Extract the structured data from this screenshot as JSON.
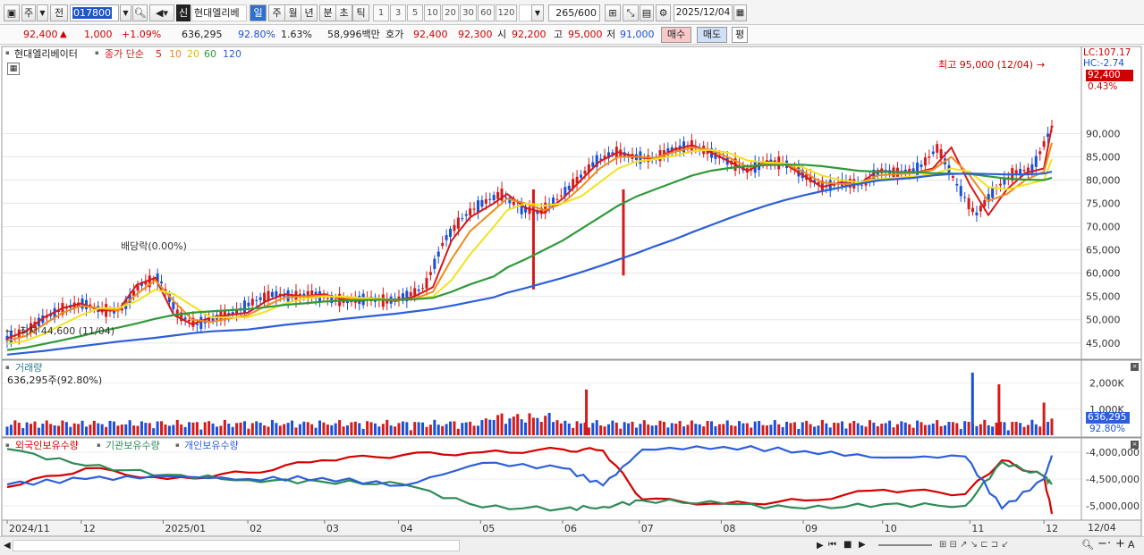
{
  "toolbar": {
    "type_label": "주",
    "prev_label": "전",
    "code": "017800",
    "sin_label": "신",
    "stock_name": "현대엘리베",
    "period_buttons": [
      "일",
      "주",
      "월",
      "년",
      "분",
      "초",
      "틱"
    ],
    "period_active": "일",
    "number_buttons": [
      "1",
      "3",
      "5",
      "10",
      "20",
      "30",
      "60",
      "120"
    ],
    "count": "265",
    "count_max": "/600",
    "date": "2025/12/04"
  },
  "quote": {
    "price": "92,400",
    "change": "1,000",
    "change_pct": "+1.09%",
    "volume": "636,295",
    "volume_ratio": "92.80%",
    "turnover": "1.63%",
    "amount": "58,996백만",
    "ask_label": "호가",
    "ask": "92,400",
    "bid": "92,300",
    "open_label": "시",
    "open": "92,200",
    "high_label": "고",
    "high": "95,000",
    "low_label": "저",
    "low": "91,000",
    "buy_label": "매수",
    "sell_label": "매도",
    "eval_label": "평"
  },
  "price_panel": {
    "legend_name": "현대엘리베이터",
    "legend_ma": "종가 단순",
    "ma_labels": [
      "5",
      "10",
      "20",
      "60",
      "120"
    ],
    "ma_colors": [
      "#d51a1a",
      "#f08a1c",
      "#f2e21d",
      "#2f9a3a",
      "#2e5fd8"
    ],
    "lc_label": "LC:107.17",
    "hc_label": "HC:-2.74",
    "current_price_tag": "92,400",
    "current_pct_tag": "0.43%",
    "high_annotation": "최고 95,000 (12/04)",
    "low_annotation": "최저 44,600 (11/04)",
    "dividend_annotation": "배당락(0.00%)"
  },
  "volume_panel": {
    "title": "거래량",
    "summary": "636,295주(92.80%)",
    "current_tag": "636,295",
    "pct_tag": "92.80%"
  },
  "holdings_panel": {
    "legend": [
      "외국인보유수량",
      "기관보유수량",
      "개인보유수량"
    ],
    "colors": [
      "#d50000",
      "#2e8b57",
      "#2e5fd8"
    ]
  },
  "x_axis": {
    "labels": [
      "2024/11",
      "12",
      "2025/01",
      "02",
      "03",
      "04",
      "05",
      "06",
      "07",
      "08",
      "09",
      "10",
      "11",
      "12"
    ],
    "right_label": "12/04"
  },
  "chart_data": [
    {
      "type": "line",
      "title": "현대엘리베이터",
      "y_ticks": [
        45000,
        50000,
        55000,
        60000,
        65000,
        70000,
        75000,
        80000,
        85000,
        90000
      ],
      "y_tick_labels": [
        "45,000",
        "50,000",
        "55,000",
        "60,000",
        "65,000",
        "70,000",
        "75,000",
        "80,000",
        "85,000",
        "90,000"
      ],
      "ylim": [
        41500,
        107170
      ],
      "x": [
        "2024-11-04",
        "2024-11-11",
        "2024-11-18",
        "2024-11-25",
        "2024-12-02",
        "2024-12-09",
        "2024-12-16",
        "2024-12-23",
        "2024-12-30",
        "2025-01-06",
        "2025-01-13",
        "2025-01-20",
        "2025-02-03",
        "2025-02-10",
        "2025-02-17",
        "2025-02-24",
        "2025-03-04",
        "2025-03-10",
        "2025-03-17",
        "2025-03-24",
        "2025-03-31",
        "2025-04-07",
        "2025-04-14",
        "2025-04-21",
        "2025-04-28",
        "2025-05-07",
        "2025-05-12",
        "2025-05-19",
        "2025-05-26",
        "2025-06-02",
        "2025-06-09",
        "2025-06-16",
        "2025-06-23",
        "2025-06-30",
        "2025-07-07",
        "2025-07-14",
        "2025-07-21",
        "2025-07-28",
        "2025-08-04",
        "2025-08-11",
        "2025-08-18",
        "2025-08-25",
        "2025-09-01",
        "2025-09-08",
        "2025-09-15",
        "2025-09-22",
        "2025-09-29",
        "2025-10-13",
        "2025-10-20",
        "2025-10-27",
        "2025-11-03",
        "2025-11-10",
        "2025-11-17",
        "2025-11-24",
        "2025-12-01",
        "2025-12-04"
      ],
      "series": [
        {
          "name": "5",
          "values": [
            46000,
            47500,
            50500,
            52500,
            53500,
            52000,
            52000,
            57500,
            59000,
            51000,
            49000,
            50500,
            51500,
            54000,
            55500,
            55000,
            55500,
            54500,
            54000,
            54500,
            54000,
            55000,
            57000,
            67000,
            72000,
            75000,
            77000,
            74000,
            73000,
            76000,
            80000,
            84000,
            86000,
            85000,
            84500,
            86500,
            87500,
            86000,
            84000,
            82000,
            84000,
            83500,
            81000,
            78500,
            79500,
            79000,
            82000,
            81500,
            82500,
            87000,
            79000,
            72500,
            78000,
            81500,
            82500,
            91500
          ]
        },
        {
          "name": "10",
          "values": [
            45500,
            46500,
            49000,
            51500,
            53000,
            52500,
            52000,
            55500,
            58500,
            54000,
            50000,
            49500,
            51000,
            53000,
            54800,
            55000,
            55200,
            54800,
            54300,
            54300,
            54200,
            54500,
            56000,
            63000,
            69000,
            73500,
            76000,
            75000,
            73500,
            75000,
            78500,
            82500,
            85000,
            85000,
            84800,
            86000,
            87000,
            86500,
            84800,
            82800,
            83500,
            83500,
            81800,
            79500,
            79200,
            79100,
            81000,
            81500,
            82200,
            85000,
            81000,
            75500,
            77000,
            80000,
            81800,
            88000
          ]
        },
        {
          "name": "20",
          "values": [
            44800,
            45500,
            47000,
            49000,
            51000,
            52500,
            52500,
            54000,
            56500,
            55500,
            53000,
            50500,
            50500,
            51800,
            53500,
            54500,
            55000,
            55000,
            54700,
            54500,
            54300,
            54400,
            55000,
            58500,
            64000,
            70000,
            73500,
            75000,
            74500,
            75000,
            76500,
            79500,
            82500,
            84000,
            84500,
            85200,
            86200,
            86500,
            85800,
            84200,
            83800,
            83600,
            82700,
            81000,
            80000,
            79500,
            80200,
            80800,
            81300,
            82500,
            81800,
            78500,
            78000,
            79000,
            80000,
            84500
          ]
        },
        {
          "name": "60",
          "values": [
            43500,
            44000,
            44800,
            45600,
            46500,
            47500,
            48300,
            49200,
            50200,
            51000,
            51500,
            51800,
            52300,
            52700,
            53200,
            53500,
            53900,
            54100,
            54200,
            54300,
            54300,
            54400,
            54700,
            56000,
            57600,
            59300,
            61200,
            63000,
            65000,
            67000,
            69500,
            72000,
            74500,
            76500,
            78000,
            79500,
            81000,
            82000,
            82600,
            83000,
            83200,
            83300,
            83300,
            83000,
            82500,
            82000,
            81800,
            81700,
            81500,
            81400,
            81300,
            80800,
            80300,
            80100,
            80000,
            80500
          ]
        },
        {
          "name": "120",
          "values": [
            42500,
            42900,
            43300,
            43800,
            44300,
            44800,
            45300,
            45700,
            46100,
            46600,
            47100,
            47500,
            47900,
            48400,
            48900,
            49300,
            49700,
            50100,
            50500,
            50900,
            51300,
            51800,
            52300,
            53000,
            53800,
            54800,
            55800,
            56800,
            57900,
            59000,
            60200,
            61500,
            62900,
            64300,
            65800,
            67200,
            68800,
            70300,
            71800,
            73200,
            74500,
            75700,
            76700,
            77600,
            78400,
            79200,
            79900,
            80500,
            81000,
            81300,
            81400,
            81300,
            81200,
            81200,
            81400,
            81800
          ]
        }
      ],
      "annotations": [
        {
          "label": "최고 95,000 (12/04)",
          "x": "2025-12-04",
          "y": 95000
        },
        {
          "label": "최저 44,600 (11/04)",
          "x": "2024-11-04",
          "y": 44600
        },
        {
          "label": "배당락(0.00%)",
          "x": "2024-12-30",
          "y": 59000
        }
      ]
    },
    {
      "type": "bar",
      "title": "거래량",
      "y_tick_labels": [
        "1,000K",
        "2,000K"
      ],
      "y_ticks": [
        1000000,
        2000000
      ],
      "last_value": 636295,
      "spikes": [
        {
          "x": "2025-06-11",
          "value": 1750000
        },
        {
          "x": "2025-11-04",
          "value": 2400000
        },
        {
          "x": "2025-11-14",
          "value": 1950000
        },
        {
          "x": "2025-12-01",
          "value": 1250000
        }
      ]
    },
    {
      "type": "line",
      "title": "보유수량",
      "y_ticks": [
        -4000000,
        -4500000,
        -5000000
      ],
      "y_tick_labels": [
        "-4,000,000",
        "-4,500,000",
        "-5,000,000"
      ],
      "ylim": [
        -5200000,
        -3800000
      ],
      "x": [
        "2024-11",
        "2024-12",
        "2025-01",
        "2025-02",
        "2025-03",
        "2025-04",
        "2025-05",
        "2025-06",
        "2025-06-16",
        "2025-07",
        "2025-08",
        "2025-09",
        "2025-10",
        "2025-11",
        "2025-11-15",
        "2025-12",
        "2025-12-04"
      ],
      "series": [
        {
          "name": "외국인보유수량",
          "values": [
            -4650000,
            -4300000,
            -4500000,
            -4380000,
            -4150000,
            -4050000,
            -4000000,
            -3950000,
            -3970000,
            -4880000,
            -4960000,
            -4900000,
            -4700000,
            -4780000,
            -4150000,
            -4450000,
            -5150000
          ]
        },
        {
          "name": "기관보유수량",
          "values": [
            -3940000,
            -4250000,
            -4420000,
            -4520000,
            -4550000,
            -4600000,
            -5030000,
            -5050000,
            -5020000,
            -4900000,
            -4960000,
            -5050000,
            -4970000,
            -5000000,
            -4180000,
            -4450000,
            -4600000
          ]
        },
        {
          "name": "개인보유수량",
          "values": [
            -4600000,
            -4500000,
            -4450000,
            -4500000,
            -4480000,
            -4620000,
            -4200000,
            -4300000,
            -4620000,
            -3950000,
            -3900000,
            -3980000,
            -4100000,
            -4080000,
            -5050000,
            -4500000,
            -4060000
          ]
        }
      ]
    }
  ]
}
